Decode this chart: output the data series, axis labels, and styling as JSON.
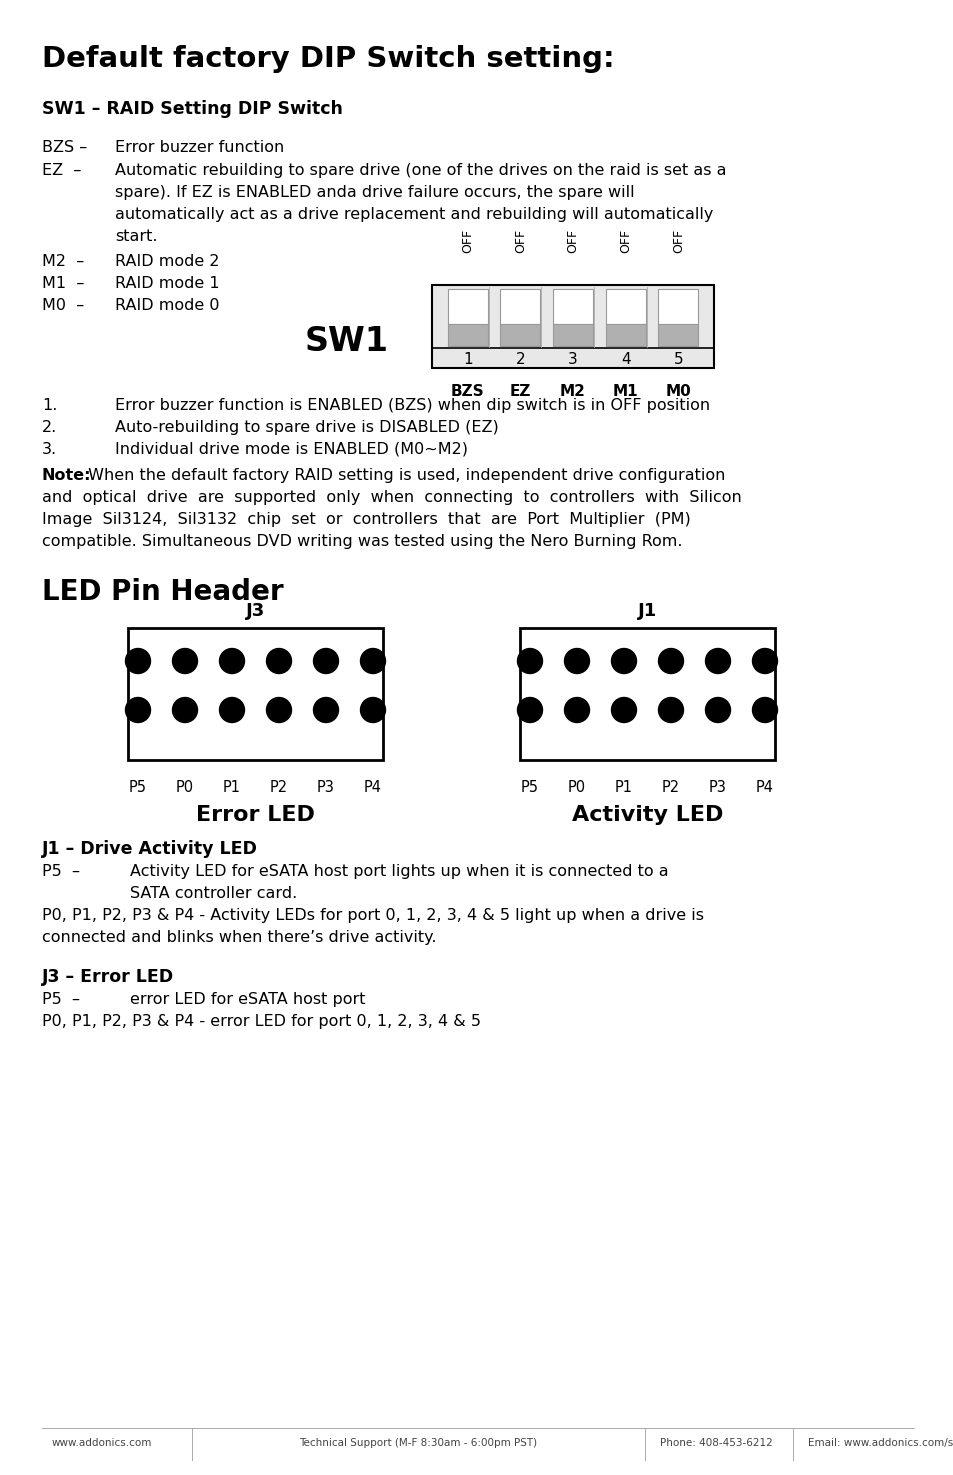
{
  "title": "Default factory DIP Switch setting:",
  "sw1_title": "SW1 – RAID Setting DIP Switch",
  "bzs_line1": "BZS –",
  "bzs_line2": "Error buzzer function",
  "ez_label": "EZ  –",
  "ez_line1": "Automatic rebuilding to spare drive (one of the drives on the raid is set as a",
  "ez_line2": "spare). If EZ is ENABLED anda drive failure occurs, the spare will",
  "ez_line3": "automatically act as a drive replacement and rebuilding will automatically",
  "ez_line4": "start.",
  "m2_label": "M2  –",
  "m2_text": "RAID mode 2",
  "m1_label": "M1  –",
  "m1_text": "RAID mode 1",
  "m0_label": "M0  –",
  "m0_text": "RAID mode 0",
  "sw1_label": "SW1",
  "dip_numbers": [
    "1",
    "2",
    "3",
    "4",
    "5"
  ],
  "dip_bottom_labels": [
    "BZS",
    "EZ",
    "M2",
    "M1",
    "M0"
  ],
  "note1": "1.",
  "note1_text": "Error buzzer function is ENABLED (BZS) when dip switch is in OFF position",
  "note2": "2.",
  "note2_text": "Auto-rebuilding to spare drive is DISABLED (EZ)",
  "note3": "3.",
  "note3_text": "Individual drive mode is ENABLED (M0~M2)",
  "note_bold": "Note:",
  "note_line1": " When the default factory RAID setting is used, independent drive configuration",
  "note_line2": "and  optical  drive  are  supported  only  when  connecting  to  controllers  with  Silicon",
  "note_line3": "Image  Sil3124,  Sil3132  chip  set  or  controllers  that  are  Port  Multiplier  (PM)",
  "note_line4": "compatible. Simultaneous DVD writing was tested using the Nero Burning Rom.",
  "led_title": "LED Pin Header",
  "j3_label": "J3",
  "j1_label": "J1",
  "error_led_label": "Error LED",
  "activity_led_label": "Activity LED",
  "pin_labels": [
    "P5",
    "P0",
    "P1",
    "P2",
    "P3",
    "P4"
  ],
  "j1_section": "J1 – Drive Activity LED",
  "j1_p5_label": "P5  –",
  "j1_p5_text1": "Activity LED for eSATA host port lights up when it is connected to a",
  "j1_p5_text2": "SATA controller card.",
  "j1_p0p4": "P0, P1, P2, P3 & P4 - Activity LEDs for port 0, 1, 2, 3, 4 & 5 light up when a drive is",
  "j1_p0p4b": "connected and blinks when there’s drive activity.",
  "j3_section": "J3 – Error LED",
  "j3_p5_label": "P5  –",
  "j3_p5_text": "error LED for eSATA host port",
  "j3_p0p4": "P0, P1, P2, P3 & P4 - error LED for port 0, 1, 2, 3, 4 & 5",
  "footer_left": "www.addonics.com",
  "footer_mid": "Technical Support (M-F 8:30am - 6:00pm PST)",
  "footer_phone": "Phone: 408-453-6212",
  "footer_email": "Email: www.addonics.com/support/query/",
  "bg_color": "#ffffff",
  "text_color": "#000000"
}
